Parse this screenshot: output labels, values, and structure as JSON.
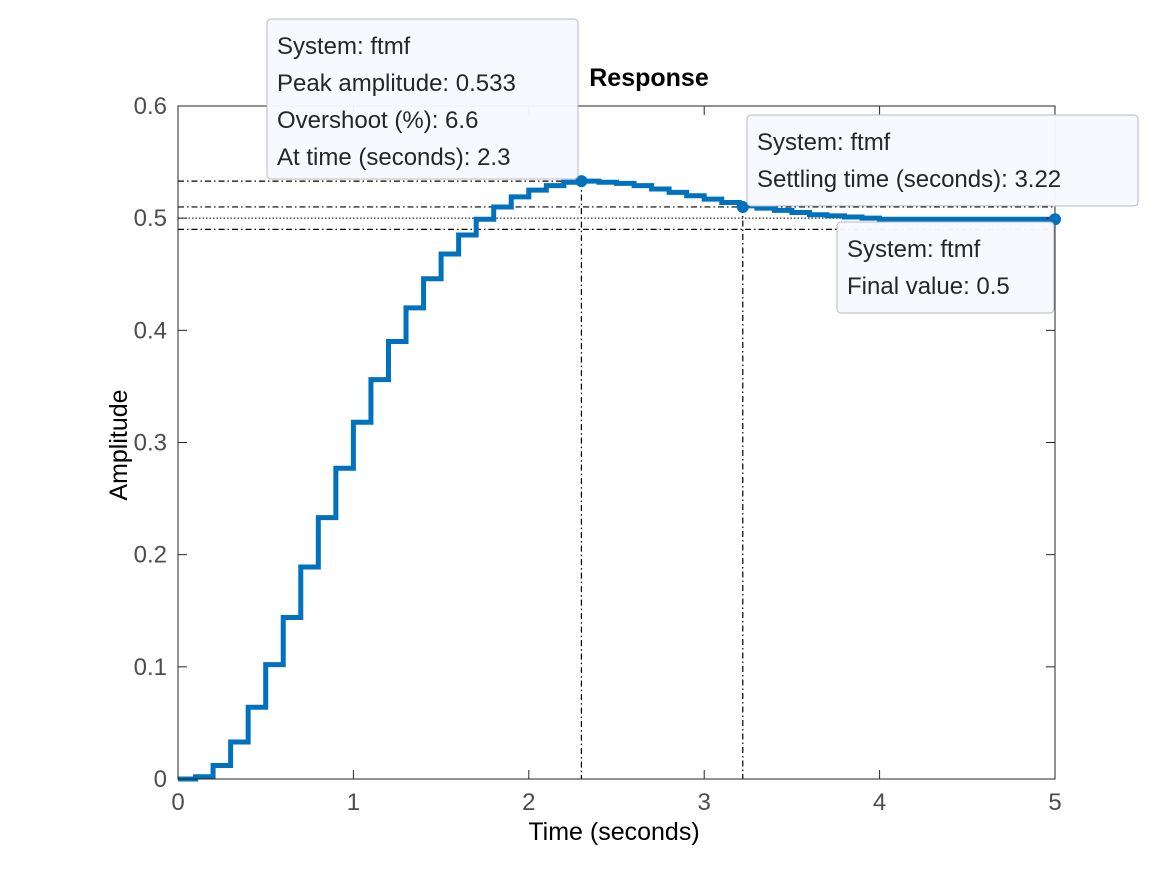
{
  "chart_data": {
    "type": "line",
    "title": "Response",
    "xlabel": "Time (seconds)",
    "ylabel": "Amplitude",
    "xlim": [
      0,
      5
    ],
    "ylim": [
      0,
      0.6
    ],
    "xticks": [
      "0",
      "1",
      "2",
      "3",
      "4",
      "5"
    ],
    "yticks": [
      "0",
      "0.1",
      "0.2",
      "0.3",
      "0.4",
      "0.5",
      "0.6"
    ],
    "grid": false,
    "step": true,
    "series_color": "#0072BD",
    "series": [
      {
        "x": [
          0,
          0.1,
          0.2,
          0.3,
          0.4,
          0.5,
          0.6,
          0.7,
          0.8,
          0.9,
          1.0,
          1.1,
          1.2,
          1.3,
          1.4,
          1.5,
          1.6,
          1.7,
          1.8,
          1.9,
          2.0,
          2.1,
          2.2,
          2.3,
          2.4,
          2.5,
          2.6,
          2.7,
          2.8,
          2.9,
          3.0,
          3.1,
          3.2,
          3.3,
          3.4,
          3.5,
          3.6,
          3.7,
          3.8,
          3.9,
          4.0,
          4.1,
          4.2,
          4.3,
          4.4,
          4.5,
          4.6,
          4.7,
          4.8,
          4.9,
          5.0
        ],
        "values": [
          0,
          0.002,
          0.012,
          0.033,
          0.064,
          0.102,
          0.144,
          0.189,
          0.233,
          0.277,
          0.318,
          0.356,
          0.39,
          0.42,
          0.446,
          0.468,
          0.485,
          0.499,
          0.51,
          0.519,
          0.525,
          0.529,
          0.532,
          0.533,
          0.532,
          0.531,
          0.529,
          0.526,
          0.523,
          0.52,
          0.517,
          0.514,
          0.511,
          0.509,
          0.507,
          0.505,
          0.503,
          0.502,
          0.501,
          0.5,
          0.499,
          0.499,
          0.499,
          0.499,
          0.499,
          0.499,
          0.499,
          0.499,
          0.499,
          0.499,
          0.499
        ]
      }
    ],
    "characteristics": {
      "peak": {
        "x": 2.3,
        "y": 0.533
      },
      "settling": {
        "x": 3.22,
        "y": 0.51,
        "band": [
          0.49,
          0.51
        ]
      },
      "final": {
        "x": 5.0,
        "y": 0.499,
        "final": 0.5
      }
    },
    "datatips": [
      {
        "id": "peak",
        "lines": [
          "System: ftmf",
          "Peak amplitude: 0.533",
          "Overshoot (%): 6.6",
          "At time (seconds): 2.3"
        ]
      },
      {
        "id": "settling",
        "lines": [
          "System: ftmf",
          "Settling time (seconds): 3.22"
        ]
      },
      {
        "id": "final",
        "lines": [
          "System: ftmf",
          "Final value: 0.5"
        ]
      }
    ]
  }
}
